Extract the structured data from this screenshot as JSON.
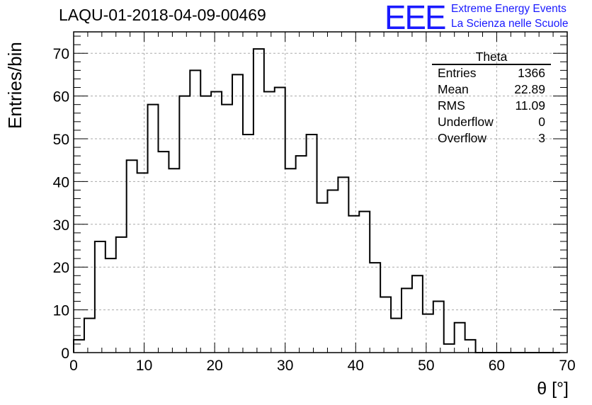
{
  "header": {
    "run_title": "LAQU-01-2018-04-09-00469",
    "logo_text": "EEE",
    "logo_line1": "Extreme Energy Events",
    "logo_line2": "La Scienza nelle Scuole",
    "logo_color": "#1a1aff"
  },
  "stats": {
    "title": "Theta",
    "rows": [
      {
        "label": "Entries",
        "value": "1366"
      },
      {
        "label": "Mean",
        "value": "22.89"
      },
      {
        "label": "RMS",
        "value": "11.09"
      },
      {
        "label": "Underflow",
        "value": "0"
      },
      {
        "label": "Overflow",
        "value": "3"
      }
    ]
  },
  "chart_data": {
    "type": "bar",
    "style": "step-histogram",
    "xlabel": "θ [°]",
    "ylabel": "Entries/bin",
    "xlim": [
      0,
      70
    ],
    "ylim": [
      0,
      75
    ],
    "x_ticks": [
      "0",
      "10",
      "20",
      "30",
      "40",
      "50",
      "60",
      "70"
    ],
    "y_ticks": [
      "0",
      "10",
      "20",
      "30",
      "40",
      "50",
      "60",
      "70"
    ],
    "grid": true,
    "bin_width": 1.5,
    "bin_edges_start": 0,
    "values": [
      3,
      8,
      26,
      22,
      27,
      45,
      42,
      58,
      47,
      43,
      60,
      66,
      60,
      61,
      58,
      65,
      51,
      71,
      61,
      62,
      43,
      46,
      51,
      35,
      38,
      41,
      32,
      33,
      21,
      13,
      8,
      15,
      18,
      9,
      12,
      2,
      7,
      3,
      0,
      0,
      0,
      0,
      0,
      0,
      0,
      0
    ]
  }
}
